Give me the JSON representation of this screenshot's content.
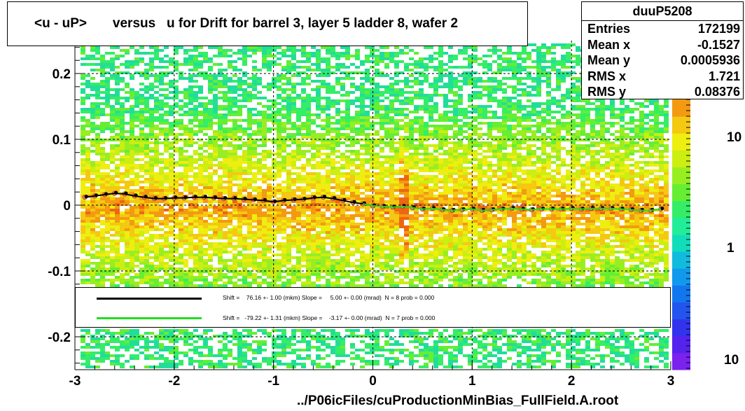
{
  "title": "<u - uP>       versus   u for Drift for barrel 3, layer 5 ladder 8, wafer 2",
  "stats": {
    "name": "duuP5208",
    "rows": [
      {
        "label": "Entries",
        "value": "172199"
      },
      {
        "label": "Mean x",
        "value": "-0.1527"
      },
      {
        "label": "Mean y",
        "value": "0.0005936"
      },
      {
        "label": "RMS x",
        "value": "1.721"
      },
      {
        "label": "RMS y",
        "value": "0.08376"
      }
    ]
  },
  "fit_legend": [
    {
      "color": "#000000",
      "text": "Shift =    76.16 +- 1.00 (mkm) Slope =     5.00 +- 0.00 (mrad)  N = 8 prob = 0.000"
    },
    {
      "color": "#22dd22",
      "text": "Shift =   -79.22 +- 1.31 (mkm) Slope =    -3.17 +- 0.00 (mrad)  N = 7 prob = 0.000"
    }
  ],
  "footer": "../P06icFiles/cuProductionMinBias_FullField.A.root",
  "chart_data": {
    "type": "heatmap",
    "title": "<u - uP>       versus   u for Drift for barrel 3, layer 5 ladder 8, wafer 2",
    "xlabel": "",
    "ylabel": "",
    "xlim": [
      -3,
      3
    ],
    "ylim": [
      -0.25,
      0.25
    ],
    "x_ticks": [
      -3,
      -2,
      -1,
      0,
      1,
      2,
      3
    ],
    "x_tick_labels": [
      "-3",
      "-2",
      "-1",
      "0",
      "1",
      "2",
      "3"
    ],
    "y_ticks": [
      -0.2,
      -0.1,
      0,
      0.1,
      0.2
    ],
    "y_tick_labels": [
      "-0.2",
      "-0.1",
      "0",
      "0.1",
      "0.2"
    ],
    "colorbar": {
      "scale": "log",
      "tick_labels": [
        "10",
        "1",
        "10"
      ]
    },
    "grid": true,
    "profile_points": {
      "x": [
        -2.9,
        -2.8,
        -2.7,
        -2.6,
        -2.5,
        -2.4,
        -2.3,
        -2.2,
        -2.1,
        -2.0,
        -1.9,
        -1.8,
        -1.7,
        -1.6,
        -1.5,
        -1.4,
        -1.3,
        -1.2,
        -1.1,
        -1.0,
        -0.9,
        -0.8,
        -0.7,
        -0.6,
        -0.5,
        -0.4,
        -0.3,
        -0.2,
        -0.1,
        0.0,
        0.1,
        0.2,
        0.3,
        0.4,
        0.5,
        0.6,
        0.7,
        0.8,
        0.9,
        1.0,
        1.1,
        1.2,
        1.3,
        1.4,
        1.5,
        1.6,
        1.7,
        1.8,
        1.9,
        2.0,
        2.1,
        2.2,
        2.3,
        2.4,
        2.5,
        2.6,
        2.7,
        2.8,
        2.9
      ],
      "y": [
        0.012,
        0.014,
        0.016,
        0.018,
        0.017,
        0.014,
        0.012,
        0.01,
        0.01,
        0.011,
        0.011,
        0.012,
        0.012,
        0.011,
        0.01,
        0.01,
        0.009,
        0.008,
        0.007,
        0.005,
        0.007,
        0.008,
        0.009,
        0.011,
        0.012,
        0.01,
        0.007,
        0.004,
        0.002,
        -0.001,
        -0.002,
        -0.003,
        -0.002,
        -0.004,
        -0.006,
        -0.005,
        -0.007,
        -0.008,
        -0.007,
        -0.006,
        -0.008,
        -0.007,
        -0.006,
        -0.005,
        -0.006,
        -0.007,
        -0.006,
        -0.006,
        -0.006,
        -0.005,
        -0.006,
        -0.005,
        -0.005,
        -0.005,
        -0.006,
        -0.007,
        -0.008,
        -0.008,
        -0.006
      ]
    }
  }
}
